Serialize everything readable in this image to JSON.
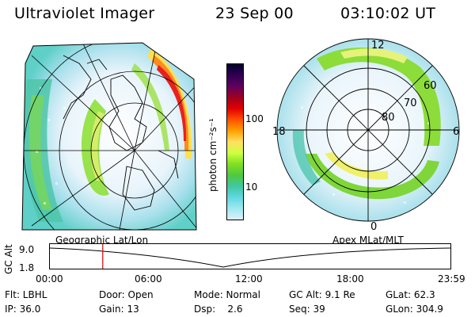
{
  "header": {
    "title": "Ultraviolet Imager",
    "date": "23 Sep 00",
    "time": "03:10:02 UT"
  },
  "left_panel": {
    "caption": "Geographic Lat/Lon"
  },
  "right_panel": {
    "caption": "Apex MLat/MLT",
    "hour_labels": [
      "12",
      "18",
      "6",
      "0"
    ],
    "lat_labels": [
      "60",
      "70",
      "80"
    ]
  },
  "colorbar": {
    "unit_label": "photon cm⁻²s⁻¹",
    "tick_labels": [
      "100",
      "10"
    ],
    "colors": [
      "#000030",
      "#300050",
      "#600060",
      "#a00020",
      "#e00000",
      "#ff5000",
      "#ffa000",
      "#ffe060",
      "#d0ff40",
      "#80e020",
      "#50c840",
      "#40c8a0",
      "#60d8e0",
      "#a0e8f0",
      "#dcefff"
    ]
  },
  "timeline": {
    "ylabel": "GC Alt",
    "y_ticks": [
      "9.0",
      "1.8"
    ],
    "x_ticks": [
      "00:00",
      "06:00",
      "12:00",
      "18:00",
      "23:59"
    ],
    "current_time_fraction": 0.132,
    "marker_color": "#d00000"
  },
  "info": {
    "row1": [
      "Flt: LBHL",
      "Door: Open",
      "Mode: Normal",
      "GC Alt: 9.1 Re",
      "GLat: 62.3"
    ],
    "row2": [
      "IP: 36.0",
      "Gain: 13",
      "Dsp:    2.6",
      "Seq: 39",
      "GLon: 304.9"
    ]
  }
}
